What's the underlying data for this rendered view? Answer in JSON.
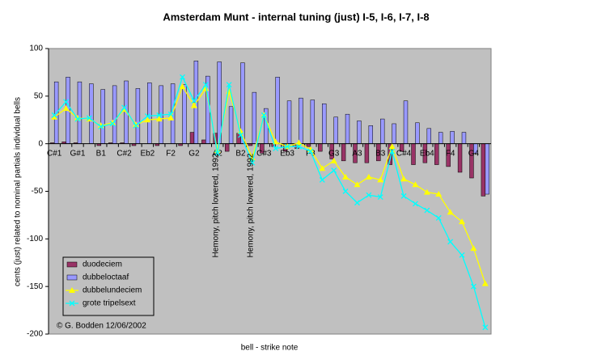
{
  "chart_data": {
    "type": "bar-line",
    "title": "Amsterdam Munt - internal tuning (just) I-5, I-6, I-7, I-8",
    "xlabel": "bell - strike note",
    "ylabel": "cents (just) related to nominal partials individual bells",
    "categories": [
      "C#1",
      null,
      "G#1",
      null,
      "B1",
      null,
      "C#2",
      null,
      "Eb2",
      null,
      "F2",
      null,
      "G2",
      null,
      "A2",
      null,
      "B2",
      null,
      "C#3",
      null,
      "Eb3",
      null,
      "F3",
      null,
      "G3",
      null,
      "A3",
      null,
      "B3",
      null,
      "C#4",
      null,
      "Eb4",
      null,
      "F4",
      null,
      "G4",
      null
    ],
    "series": [
      {
        "name": "duodeciem",
        "kind": "bar",
        "color": "#993366",
        "values": [
          1,
          2,
          1,
          0,
          -2,
          1,
          1,
          -2,
          0,
          -2,
          0,
          -2,
          12,
          4,
          11,
          -8,
          11,
          -2,
          -10,
          -3,
          -8,
          -5,
          -3,
          -8,
          -16,
          -18,
          -20,
          -20,
          -18,
          -22,
          -8,
          -22,
          -20,
          -22,
          -24,
          -30,
          -36,
          -55
        ]
      },
      {
        "name": "dubbeloctaaf",
        "kind": "bar",
        "color": "#9999ff",
        "values": [
          65,
          70,
          65,
          63,
          57,
          61,
          66,
          58,
          64,
          61,
          63,
          62,
          87,
          71,
          86,
          39,
          85,
          54,
          37,
          70,
          45,
          48,
          46,
          42,
          28,
          31,
          24,
          19,
          26,
          21,
          45,
          22,
          16,
          12,
          13,
          12,
          -10,
          -53
        ]
      },
      {
        "name": "dubbelundeciem",
        "kind": "line",
        "marker": "triangle",
        "color": "#ffff00",
        "values": [
          28,
          37,
          27,
          26,
          19,
          22,
          36,
          20,
          25,
          26,
          27,
          60,
          40,
          58,
          -7,
          55,
          13,
          -15,
          30,
          2,
          -3,
          1,
          -6,
          -26,
          -18,
          -35,
          -43,
          -35,
          -38,
          -3,
          -37,
          -43,
          -51,
          -53,
          -72,
          -82,
          -110,
          -147
        ]
      },
      {
        "name": "grote tripelsext",
        "kind": "line",
        "marker": "x",
        "color": "#00ffff",
        "values": [
          30,
          44,
          26,
          27,
          18,
          21,
          38,
          19,
          29,
          30,
          31,
          70,
          45,
          62,
          -10,
          62,
          9,
          -20,
          30,
          -5,
          -3,
          -3,
          -8,
          -38,
          -28,
          -50,
          -62,
          -54,
          -56,
          -8,
          -55,
          -63,
          -70,
          -78,
          -103,
          -117,
          -150,
          -193
        ]
      }
    ],
    "annotations": [
      "Hemony, pitch lowered, 1992",
      "Hemony, pitch lowered, 1992"
    ],
    "credit": "© G. Bodden 12/06/2002",
    "ylim": [
      -200,
      100
    ],
    "yticks": [
      -200,
      -150,
      -100,
      -50,
      0,
      50,
      100
    ],
    "legend": "lower left",
    "background": "#c0c0c0"
  }
}
